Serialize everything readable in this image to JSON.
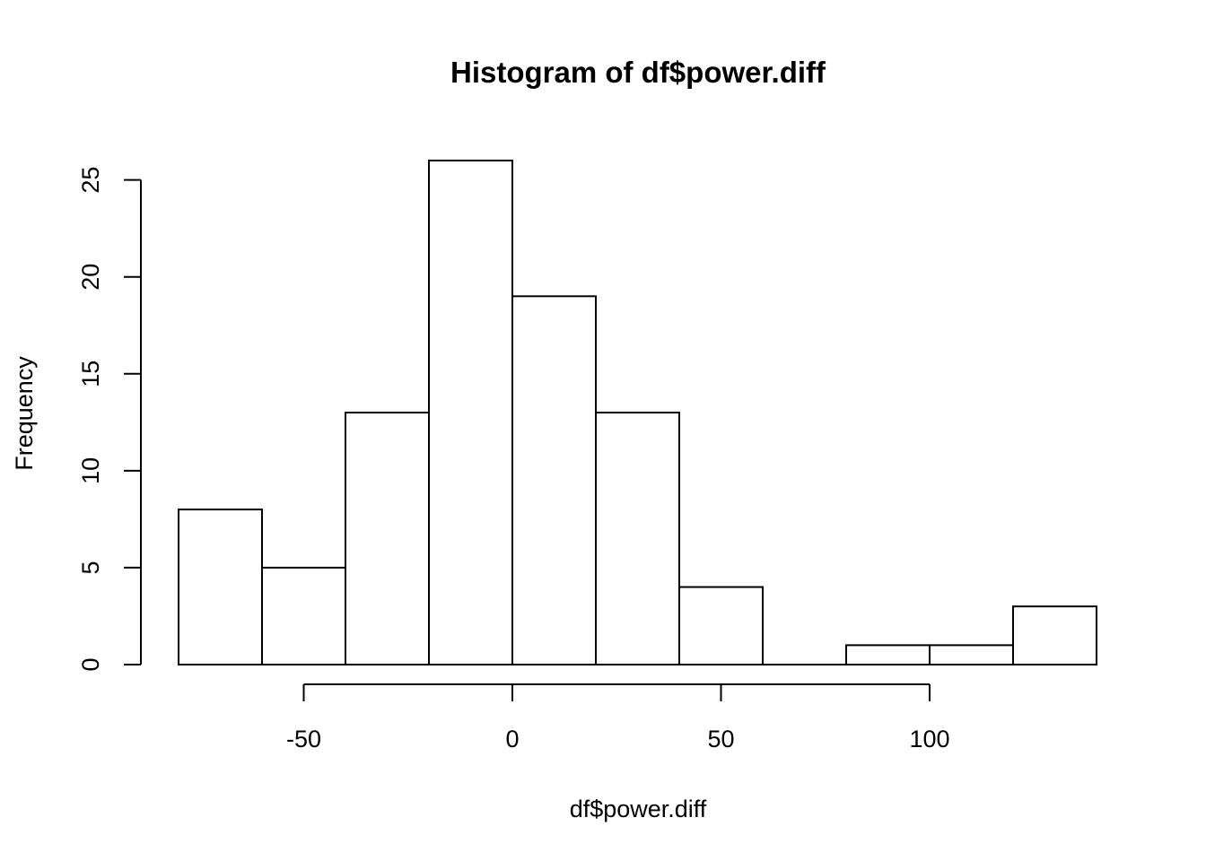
{
  "chart_data": {
    "type": "bar",
    "title": "Histogram of df$power.diff",
    "xlabel": "df$power.diff",
    "ylabel": "Frequency",
    "bins": [
      {
        "from": -80,
        "to": -60,
        "count": 8
      },
      {
        "from": -60,
        "to": -40,
        "count": 5
      },
      {
        "from": -40,
        "to": -20,
        "count": 13
      },
      {
        "from": -20,
        "to": 0,
        "count": 26
      },
      {
        "from": 0,
        "to": 20,
        "count": 19
      },
      {
        "from": 20,
        "to": 40,
        "count": 13
      },
      {
        "from": 40,
        "to": 60,
        "count": 4
      },
      {
        "from": 60,
        "to": 80,
        "count": 0
      },
      {
        "from": 80,
        "to": 100,
        "count": 1
      },
      {
        "from": 100,
        "to": 120,
        "count": 1
      },
      {
        "from": 120,
        "to": 140,
        "count": 3
      }
    ],
    "x_ticks": [
      {
        "value": -50,
        "label": "-50"
      },
      {
        "value": 0,
        "label": "0"
      },
      {
        "value": 50,
        "label": "50"
      },
      {
        "value": 100,
        "label": "100"
      }
    ],
    "y_ticks": [
      {
        "value": 0,
        "label": "0"
      },
      {
        "value": 5,
        "label": "5"
      },
      {
        "value": 10,
        "label": "10"
      },
      {
        "value": 15,
        "label": "15"
      },
      {
        "value": 20,
        "label": "20"
      },
      {
        "value": 25,
        "label": "25"
      }
    ],
    "xlim": [
      -80,
      140
    ],
    "ylim": [
      0,
      26
    ],
    "grid": false,
    "legend": "none",
    "bar_fill": "#ffffff",
    "bar_stroke": "#000000"
  }
}
